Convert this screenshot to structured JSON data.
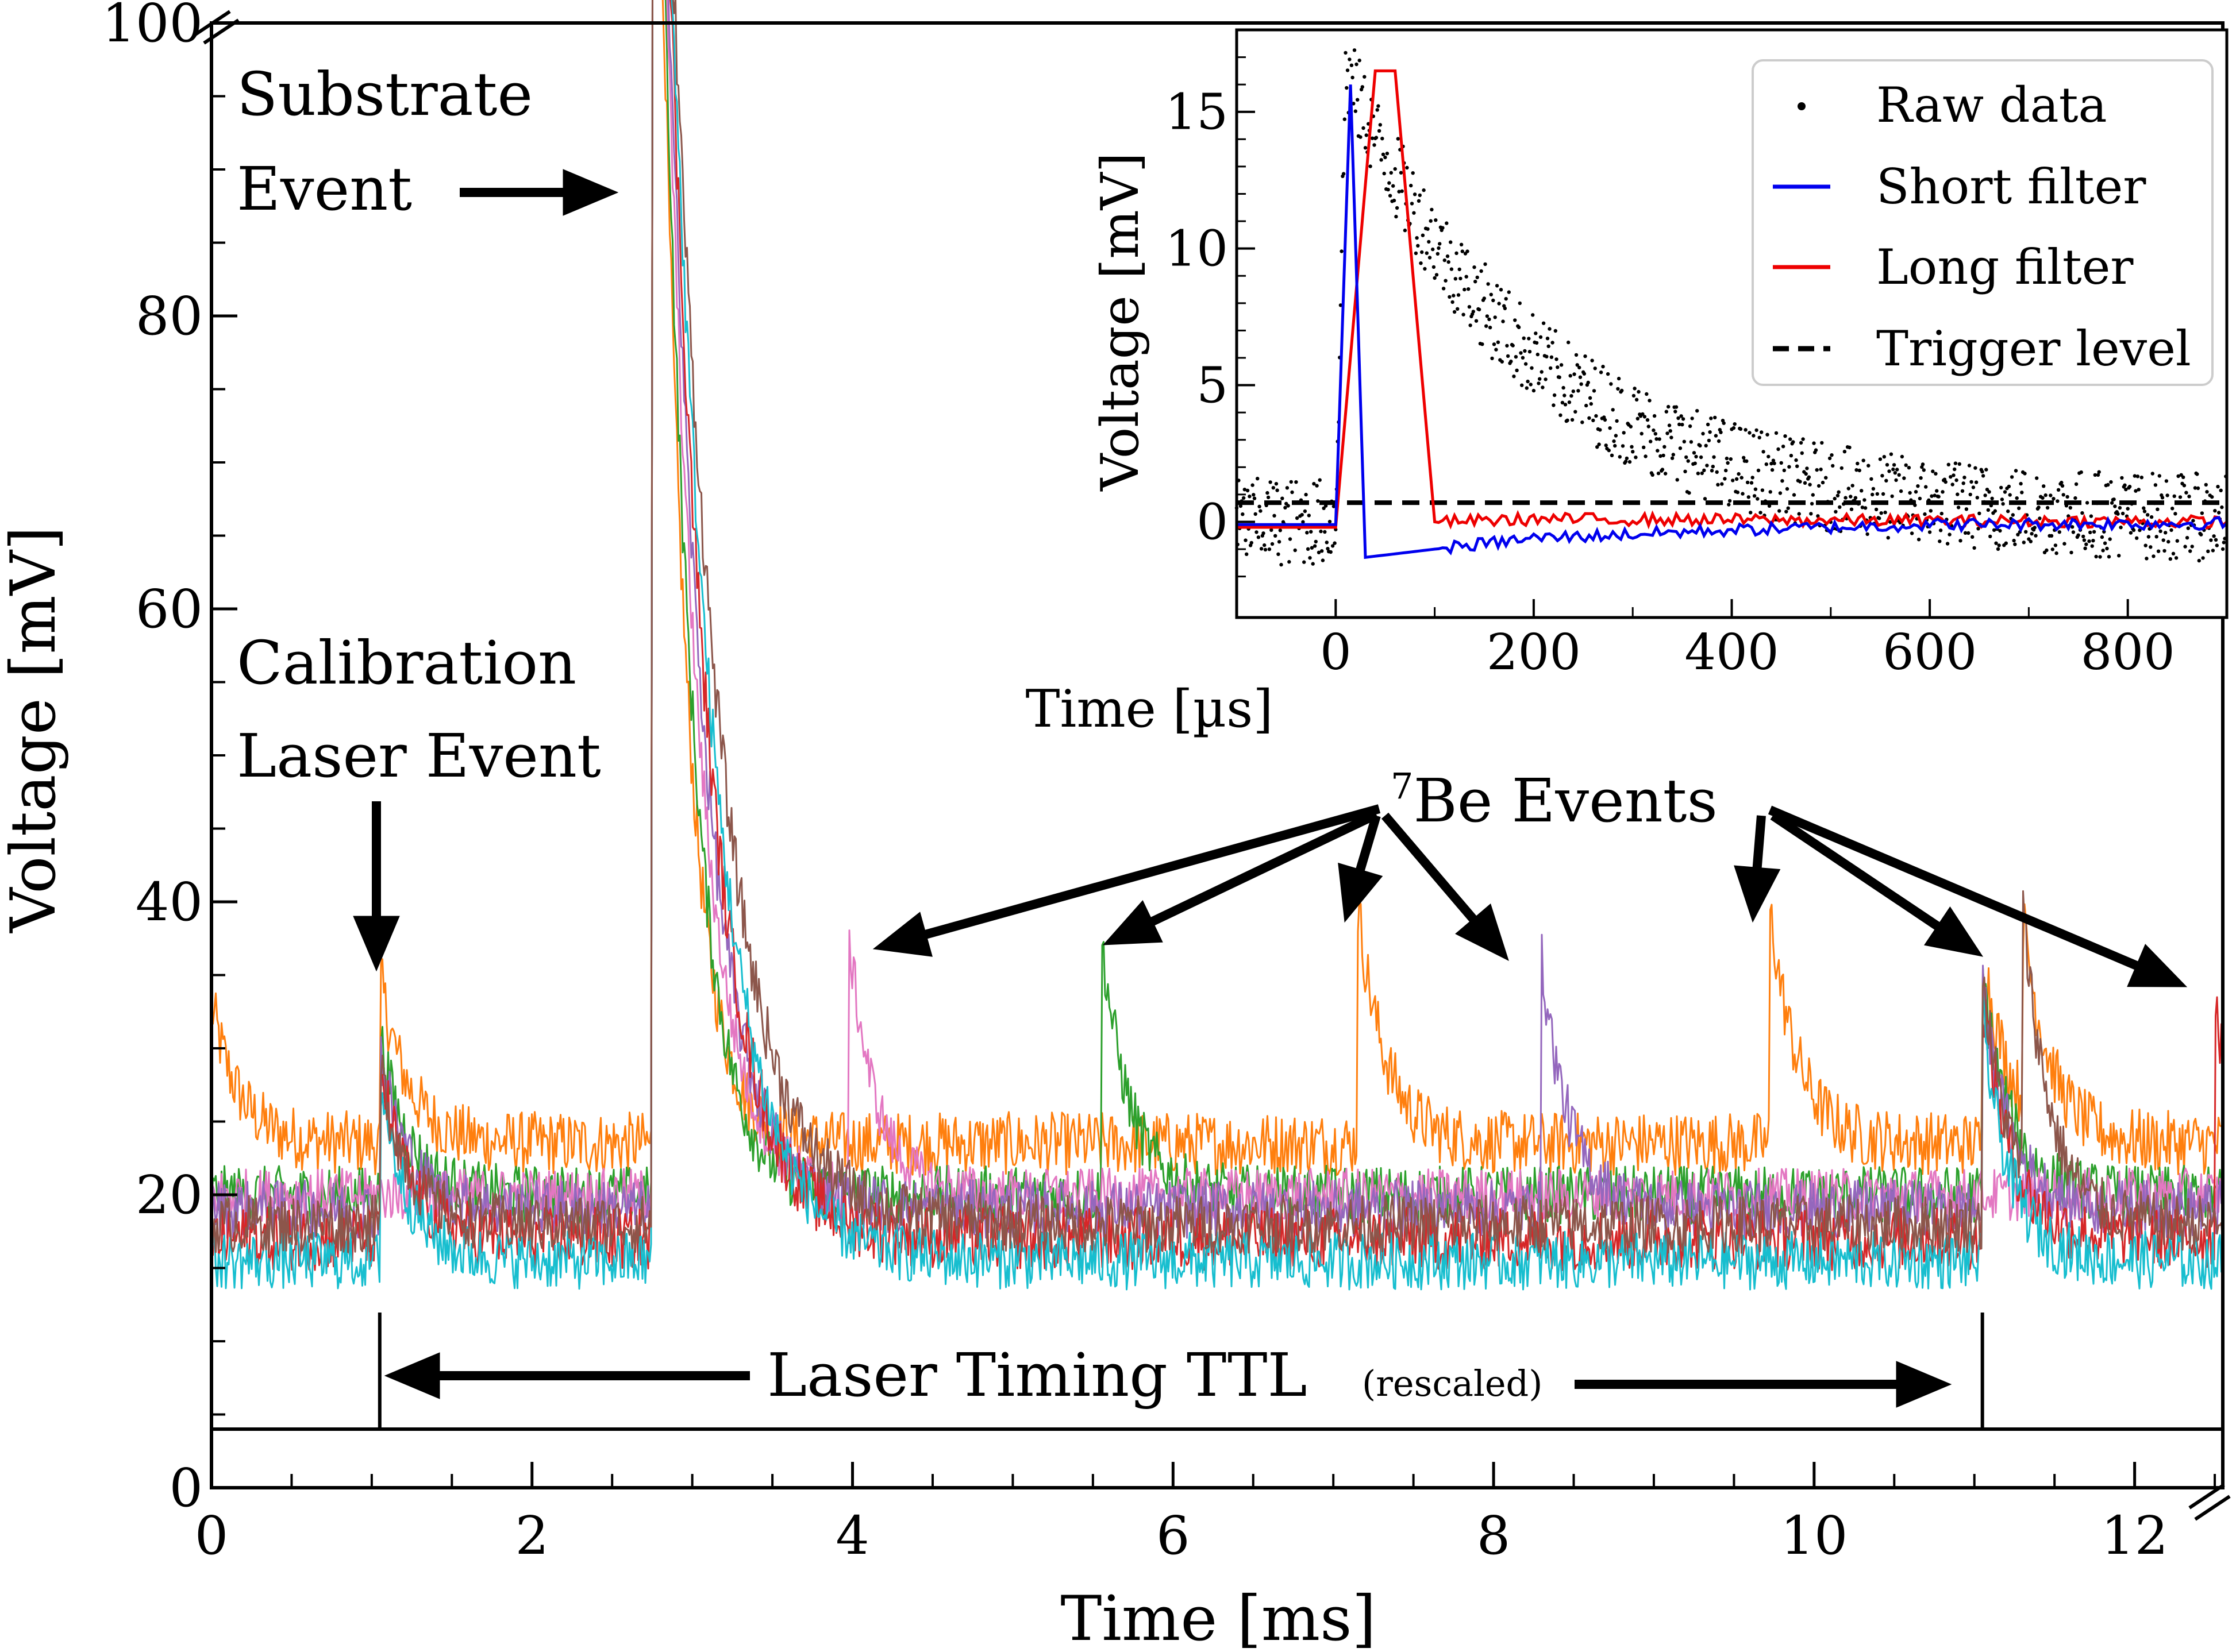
{
  "chart_data": [
    {
      "type": "line",
      "name": "main",
      "xlabel": "Time [ms]",
      "ylabel": "Voltage [mV]",
      "xlim": [
        0,
        12.55
      ],
      "ylim": [
        0,
        100
      ],
      "axis_break": "y axis between 0 and ~4 mV (TTL strip) and top/right corners marked with break symbols",
      "xticks": [
        0,
        2,
        4,
        6,
        8,
        10,
        12
      ],
      "xtick_labels": [
        "0",
        "2",
        "4",
        "6",
        "8",
        "10",
        "12"
      ],
      "yticks": [
        0,
        20,
        40,
        60,
        80,
        100
      ],
      "ytick_labels": [
        "0",
        "20",
        "40",
        "60",
        "80",
        "100"
      ],
      "series": [
        {
          "name": "orange",
          "color": "#ff7f0e",
          "baseline": 23.5,
          "noise": 1.2,
          "events": [
            [
              0.0,
              33
            ],
            [
              1.05,
              35
            ],
            [
              2.75,
              100
            ],
            [
              7.15,
              40
            ],
            [
              9.72,
              40
            ],
            [
              11.05,
              37
            ],
            [
              11.3,
              36
            ]
          ]
        },
        {
          "name": "green",
          "color": "#2ca02c",
          "baseline": 20.0,
          "noise": 1.1,
          "events": [
            [
              1.05,
              31
            ],
            [
              2.75,
              100
            ],
            [
              5.55,
              38
            ],
            [
              11.05,
              35
            ]
          ]
        },
        {
          "name": "pink",
          "color": "#e377c2",
          "baseline": 20.0,
          "noise": 1.0,
          "events": [
            [
              2.75,
              100
            ],
            [
              3.98,
              37
            ]
          ]
        },
        {
          "name": "purple",
          "color": "#9467bd",
          "baseline": 19.0,
          "noise": 1.1,
          "events": [
            [
              1.05,
              30
            ],
            [
              2.75,
              100
            ],
            [
              8.3,
              36
            ],
            [
              11.05,
              34
            ]
          ]
        },
        {
          "name": "red",
          "color": "#d62728",
          "baseline": 17.0,
          "noise": 1.2,
          "events": [
            [
              1.05,
              29
            ],
            [
              2.75,
              100
            ],
            [
              11.05,
              34
            ],
            [
              12.5,
              34
            ]
          ]
        },
        {
          "name": "cyan",
          "color": "#17becf",
          "baseline": 15.5,
          "noise": 1.1,
          "events": [
            [
              1.05,
              28
            ],
            [
              2.75,
              100
            ],
            [
              11.05,
              32
            ]
          ]
        },
        {
          "name": "brown",
          "color": "#8c564b",
          "baseline": 18.0,
          "noise": 1.1,
          "events": [
            [
              1.05,
              29
            ],
            [
              2.75,
              100
            ],
            [
              11.05,
              35
            ],
            [
              11.3,
              36
            ]
          ]
        }
      ],
      "annotations": {
        "substrate": [
          "Substrate",
          "Event"
        ],
        "calibration": [
          "Calibration",
          "Laser Event"
        ],
        "be_events_super": "7",
        "be_events": "Be Events",
        "ttl_main": "Laser Timing TTL",
        "ttl_small": "(rescaled)"
      },
      "ttl_markers_ms": [
        1.05,
        11.05
      ]
    },
    {
      "type": "line",
      "name": "inset",
      "xlabel": "Time [µs]",
      "ylabel": "Voltage [mV]",
      "xlim": [
        -100,
        900
      ],
      "ylim": [
        -3.5,
        18
      ],
      "xticks": [
        0,
        200,
        400,
        600,
        800
      ],
      "xtick_labels": [
        "0",
        "200",
        "400",
        "600",
        "800"
      ],
      "yticks": [
        0,
        5,
        10,
        15
      ],
      "ytick_labels": [
        "0",
        "5",
        "10",
        "15"
      ],
      "legend_position": "top-right",
      "legend": [
        "Raw data",
        "Short filter",
        "Long filter",
        "Trigger level"
      ],
      "series": [
        {
          "name": "Raw data",
          "style": "dots",
          "color": "#000000",
          "peak_time_us": 10,
          "peak_mV": 16.5,
          "decay_tau_us": 190
        },
        {
          "name": "Short filter",
          "color": "#0000ee",
          "points": [
            [
              -100,
              -0.1
            ],
            [
              0,
              -0.1
            ],
            [
              15,
              16.0
            ],
            [
              30,
              -1.3
            ],
            [
              100,
              -1.0
            ],
            [
              200,
              -0.6
            ],
            [
              400,
              -0.3
            ],
            [
              600,
              -0.1
            ],
            [
              900,
              -0.05
            ]
          ]
        },
        {
          "name": "Long filter",
          "color": "#ee0000",
          "points": [
            [
              -100,
              -0.2
            ],
            [
              0,
              -0.2
            ],
            [
              40,
              16.5
            ],
            [
              60,
              16.5
            ],
            [
              100,
              0.0
            ],
            [
              200,
              0.1
            ],
            [
              900,
              0.0
            ]
          ]
        },
        {
          "name": "Trigger level",
          "style": "dashed",
          "color": "#000000",
          "value": 0.7
        }
      ]
    }
  ]
}
